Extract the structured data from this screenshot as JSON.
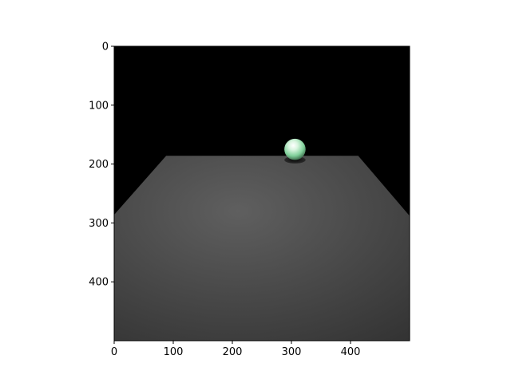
{
  "chart_data": {
    "type": "image",
    "title": "",
    "xlabel": "",
    "ylabel": "",
    "xlim": [
      0,
      500
    ],
    "ylim": [
      500,
      0
    ],
    "x_ticks": [
      "0",
      "100",
      "200",
      "300",
      "400"
    ],
    "y_ticks": [
      "0",
      "100",
      "200",
      "300",
      "400"
    ],
    "x_tick_values": [
      0,
      100,
      200,
      300,
      400
    ],
    "y_tick_values": [
      0,
      100,
      200,
      300,
      400
    ],
    "grid": false,
    "legend": "none",
    "image": {
      "scene": "rendered 3D scene",
      "background_color": "#000000",
      "floor_color": "#555555",
      "floor_polygon": [
        [
          88,
          186
        ],
        [
          413,
          186
        ],
        [
          500,
          288
        ],
        [
          500,
          500
        ],
        [
          0,
          500
        ],
        [
          0,
          286
        ]
      ],
      "sphere": {
        "center": [
          306,
          175
        ],
        "radius": 18,
        "color": "#9fe0b4"
      },
      "shadow": {
        "center": [
          306,
          193
        ],
        "rx": 18,
        "ry": 6,
        "color": "#151515"
      }
    }
  }
}
